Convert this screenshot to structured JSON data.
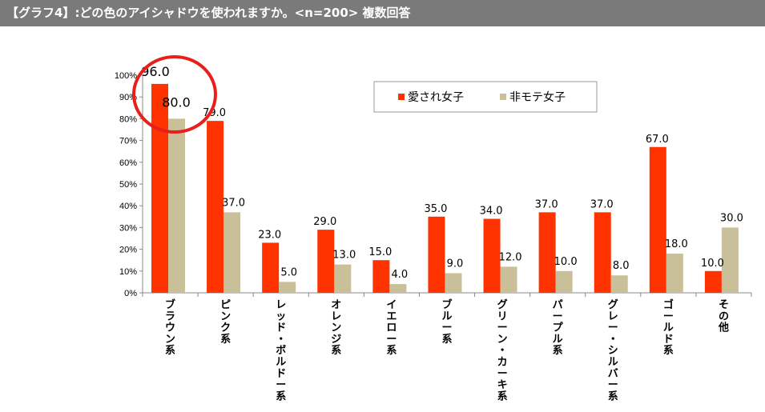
{
  "header": {
    "title": "【グラフ4】:どの色のアイシャドウを使われますか。<n=200>  複数回答"
  },
  "colors": {
    "series_1": "#ff3300",
    "series_2": "#c9bf98",
    "highlight_circle": "#e8201c",
    "title_bar": "#7a7a7a"
  },
  "chart_data": {
    "type": "bar",
    "categories": [
      "ブラウン系",
      "ピンク系",
      "レッド・ボルドー系",
      "オレンジ系",
      "イエロー系",
      "ブルー系",
      "グリーン・カーキ系",
      "パープル系",
      "グレー・シルバー系",
      "ゴールド系",
      "その他"
    ],
    "series": [
      {
        "name": "愛され女子",
        "values": [
          96.0,
          79.0,
          23.0,
          29.0,
          15.0,
          35.0,
          34.0,
          37.0,
          37.0,
          67.0,
          10.0
        ]
      },
      {
        "name": "非モテ女子",
        "values": [
          80.0,
          37.0,
          5.0,
          13.0,
          4.0,
          9.0,
          12.0,
          10.0,
          8.0,
          18.0,
          30.0
        ]
      }
    ],
    "y_ticks": [
      "0%",
      "10%",
      "20%",
      "30%",
      "40%",
      "50%",
      "60%",
      "70%",
      "80%",
      "90%",
      "100%"
    ],
    "ylim": [
      0,
      100
    ],
    "legend_position": "top-right",
    "grid": false,
    "highlight": "ブラウン系"
  }
}
